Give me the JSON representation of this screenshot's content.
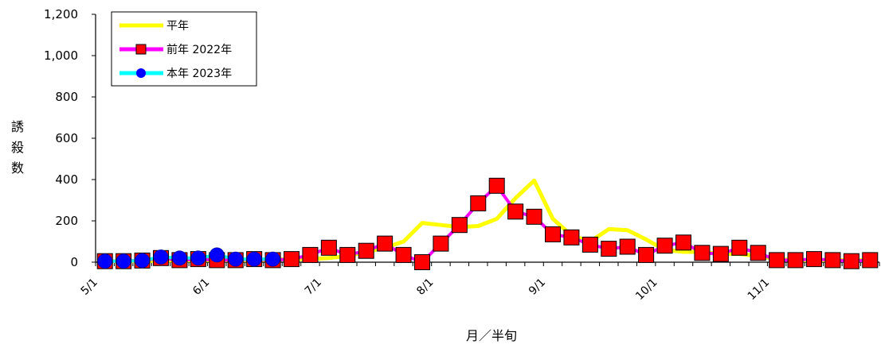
{
  "chart_data": {
    "type": "line",
    "ylabel": "誘殺数",
    "xlabel": "月／半旬",
    "ylim": [
      0,
      1200
    ],
    "yticks": [
      0,
      200,
      400,
      600,
      800,
      1000,
      1200
    ],
    "ytick_labels": [
      "0",
      "200",
      "400",
      "600",
      "800",
      "1,000",
      "1,200"
    ],
    "xtick_labels": [
      {
        "label": "5/1",
        "index": 0
      },
      {
        "label": "6/1",
        "index": 6
      },
      {
        "label": "7/1",
        "index": 12
      },
      {
        "label": "8/1",
        "index": 18
      },
      {
        "label": "9/1",
        "index": 24
      },
      {
        "label": "10/1",
        "index": 30
      },
      {
        "label": "11/1",
        "index": 36
      }
    ],
    "n_periods": 42,
    "legend_position": "top-left",
    "series": [
      {
        "name": "平年",
        "color": "#ffff00",
        "marker": "none",
        "values": [
          5,
          5,
          5,
          8,
          8,
          10,
          10,
          10,
          10,
          12,
          15,
          15,
          20,
          30,
          50,
          70,
          100,
          190,
          180,
          170,
          175,
          210,
          310,
          395,
          210,
          130,
          100,
          160,
          155,
          110,
          60,
          50,
          50,
          40,
          40,
          30,
          15,
          10,
          10,
          10,
          10,
          10
        ]
      },
      {
        "name": "前年 2022年",
        "color": "#ff00ff",
        "marker": "square",
        "marker_color": "#ff0000",
        "values": [
          5,
          5,
          8,
          20,
          10,
          15,
          10,
          10,
          15,
          10,
          15,
          35,
          70,
          35,
          55,
          90,
          35,
          0,
          90,
          180,
          285,
          370,
          245,
          220,
          135,
          120,
          85,
          65,
          75,
          35,
          80,
          95,
          45,
          40,
          70,
          45,
          10,
          10,
          15,
          10,
          5,
          10
        ]
      },
      {
        "name": "本年 2023年",
        "color": "#00ffff",
        "marker": "circle",
        "marker_color": "#0000ff",
        "values": [
          5,
          5,
          8,
          25,
          20,
          20,
          35,
          15,
          15,
          15
        ]
      }
    ]
  }
}
